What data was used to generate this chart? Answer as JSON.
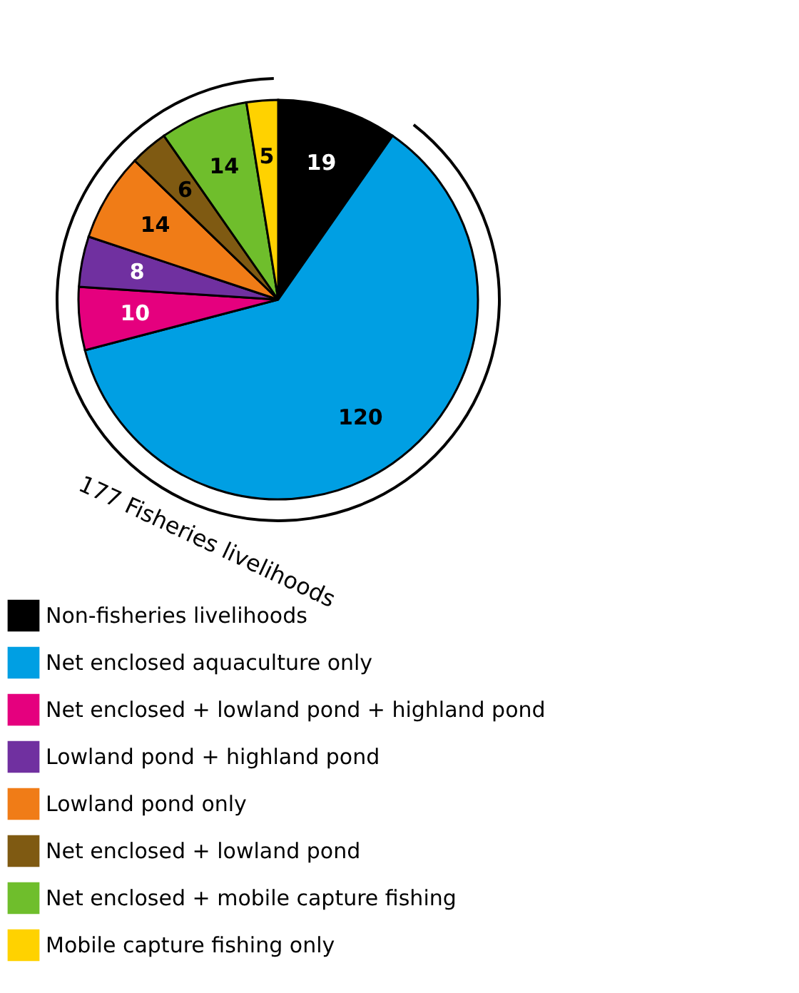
{
  "chart_data": {
    "type": "pie",
    "categories": [
      "Non-fisheries livelihoods",
      "Net enclosed aquaculture only",
      "Net enclosed + lowland pond + highland pond",
      "Lowland pond + highland pond",
      "Lowland pond only",
      "Net enclosed + lowland pond",
      "Net enclosed + mobile capture fishing",
      "Mobile capture fishing only"
    ],
    "values": [
      19,
      120,
      10,
      8,
      14,
      6,
      14,
      5
    ],
    "colors": [
      "#000000",
      "#009fe3",
      "#e5007e",
      "#7030a0",
      "#f07c17",
      "#7f5a12",
      "#6fbe2c",
      "#ffd200"
    ],
    "data_labels": true,
    "legend": "bottom",
    "annotations": [
      "177 Fisheries livelihoods"
    ]
  }
}
